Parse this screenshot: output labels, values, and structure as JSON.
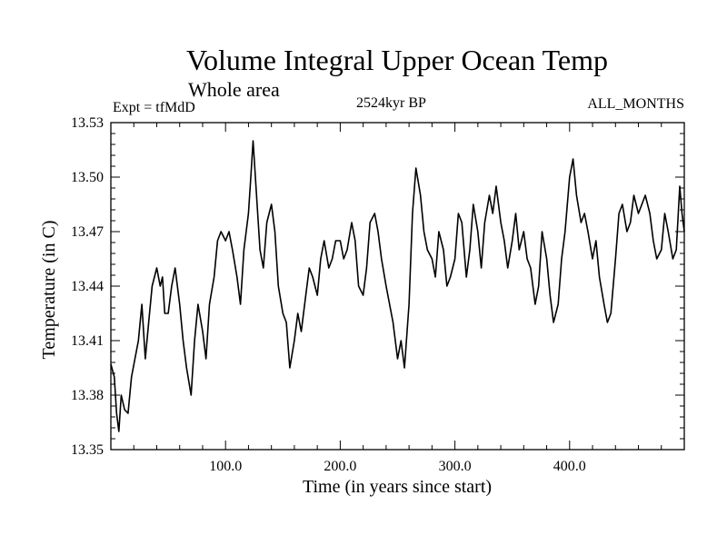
{
  "chart_data": {
    "type": "line",
    "title": "Volume Integral Upper Ocean Temp",
    "subtitle": "Whole area",
    "left_label": "Expt = tfMdD",
    "center_label": "2524kyr BP",
    "right_label": "ALL_MONTHS",
    "xlabel": "Time (in years since start)",
    "ylabel": "Temperature (in C)",
    "xlim": [
      0,
      500
    ],
    "ylim": [
      13.35,
      13.53
    ],
    "xticks": [
      100,
      200,
      300,
      400
    ],
    "xtick_labels": [
      "100.0",
      "200.0",
      "300.0",
      "400.0"
    ],
    "yticks": [
      13.35,
      13.38,
      13.41,
      13.44,
      13.47,
      13.5,
      13.53
    ],
    "ytick_labels": [
      "13.35",
      "13.38",
      "13.41",
      "13.44",
      "13.47",
      "13.50",
      "13.53"
    ],
    "grid": false,
    "series": [
      {
        "name": "Temperature",
        "x": [
          0,
          3,
          5,
          7,
          9,
          12,
          15,
          18,
          21,
          24,
          27,
          30,
          33,
          36,
          40,
          43,
          45,
          47,
          50,
          53,
          56,
          60,
          63,
          66,
          70,
          73,
          76,
          80,
          83,
          86,
          90,
          93,
          96,
          100,
          103,
          106,
          110,
          113,
          116,
          120,
          122,
          124,
          127,
          130,
          133,
          136,
          140,
          143,
          146,
          150,
          153,
          156,
          160,
          163,
          166,
          170,
          173,
          176,
          180,
          183,
          186,
          190,
          193,
          196,
          200,
          203,
          206,
          210,
          213,
          216,
          220,
          223,
          226,
          230,
          233,
          236,
          240,
          243,
          246,
          250,
          253,
          256,
          260,
          263,
          266,
          270,
          273,
          276,
          280,
          283,
          286,
          290,
          293,
          296,
          300,
          303,
          306,
          310,
          313,
          316,
          320,
          323,
          326,
          330,
          333,
          336,
          340,
          343,
          346,
          350,
          353,
          356,
          360,
          363,
          366,
          370,
          373,
          376,
          380,
          383,
          386,
          390,
          393,
          396,
          400,
          403,
          406,
          410,
          413,
          416,
          420,
          423,
          426,
          430,
          433,
          436,
          440,
          443,
          446,
          450,
          453,
          456,
          460,
          463,
          466,
          470,
          473,
          476,
          480,
          483,
          486,
          490,
          493,
          496,
          498,
          500
        ],
        "y": [
          13.397,
          13.39,
          13.37,
          13.36,
          13.38,
          13.372,
          13.37,
          13.39,
          13.4,
          13.41,
          13.43,
          13.4,
          13.42,
          13.44,
          13.45,
          13.44,
          13.445,
          13.425,
          13.425,
          13.44,
          13.45,
          13.43,
          13.41,
          13.395,
          13.38,
          13.41,
          13.43,
          13.415,
          13.4,
          13.43,
          13.445,
          13.465,
          13.47,
          13.465,
          13.47,
          13.46,
          13.445,
          13.43,
          13.46,
          13.48,
          13.5,
          13.52,
          13.49,
          13.46,
          13.45,
          13.475,
          13.485,
          13.47,
          13.44,
          13.425,
          13.42,
          13.395,
          13.41,
          13.425,
          13.415,
          13.435,
          13.45,
          13.445,
          13.435,
          13.455,
          13.465,
          13.45,
          13.455,
          13.465,
          13.465,
          13.455,
          13.46,
          13.475,
          13.465,
          13.44,
          13.435,
          13.45,
          13.475,
          13.48,
          13.47,
          13.455,
          13.44,
          13.43,
          13.42,
          13.4,
          13.41,
          13.395,
          13.43,
          13.48,
          13.505,
          13.49,
          13.47,
          13.46,
          13.455,
          13.445,
          13.47,
          13.46,
          13.44,
          13.445,
          13.455,
          13.48,
          13.475,
          13.445,
          13.46,
          13.485,
          13.47,
          13.45,
          13.475,
          13.49,
          13.48,
          13.495,
          13.475,
          13.465,
          13.45,
          13.465,
          13.48,
          13.46,
          13.47,
          13.455,
          13.45,
          13.43,
          13.44,
          13.47,
          13.455,
          13.435,
          13.42,
          13.43,
          13.455,
          13.47,
          13.5,
          13.51,
          13.49,
          13.475,
          13.48,
          13.47,
          13.455,
          13.465,
          13.445,
          13.43,
          13.42,
          13.425,
          13.455,
          13.48,
          13.485,
          13.47,
          13.475,
          13.49,
          13.48,
          13.485,
          13.49,
          13.48,
          13.465,
          13.455,
          13.46,
          13.48,
          13.47,
          13.455,
          13.46,
          13.495,
          13.48,
          13.47
        ]
      }
    ]
  }
}
